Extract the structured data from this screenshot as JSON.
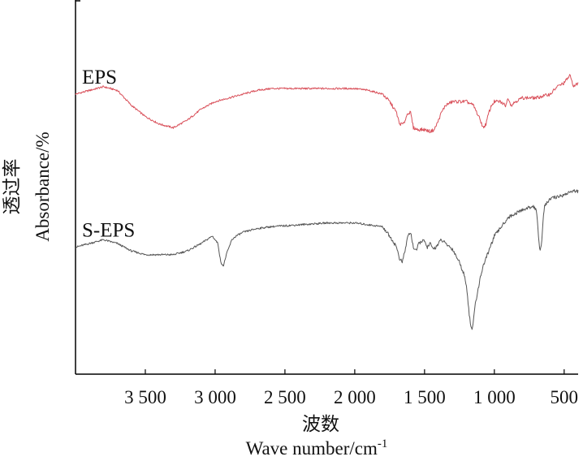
{
  "chart_data": {
    "type": "line",
    "title": "",
    "xlabel_cn": "波数",
    "xlabel": "Wave number/cm",
    "xlabel_sup": "-1",
    "ylabel_cn": "透过率",
    "ylabel": "Absorbance/%",
    "xlim": [
      4000,
      400
    ],
    "x_reversed": true,
    "ylim": [
      0,
      100
    ],
    "y_ticks_shown": false,
    "grid": false,
    "x_ticks": [
      3500,
      3000,
      2500,
      2000,
      1500,
      1000,
      500
    ],
    "x_tick_labels": [
      "3 500",
      "3 000",
      "2 500",
      "2 000",
      "1 500",
      "1 000",
      "500"
    ],
    "series": [
      {
        "name": "EPS",
        "color": "#d9505a",
        "x": [
          4000,
          3900,
          3800,
          3700,
          3600,
          3500,
          3400,
          3300,
          3200,
          3100,
          3000,
          2900,
          2800,
          2700,
          2600,
          2400,
          2200,
          2000,
          1900,
          1800,
          1750,
          1700,
          1680,
          1650,
          1620,
          1600,
          1580,
          1550,
          1500,
          1460,
          1430,
          1400,
          1380,
          1350,
          1300,
          1250,
          1200,
          1150,
          1100,
          1080,
          1060,
          1040,
          1020,
          1000,
          960,
          920,
          900,
          880,
          850,
          800,
          700,
          600,
          550,
          500,
          460,
          430,
          400
        ],
        "values": [
          75,
          76,
          77,
          76,
          72,
          69,
          67,
          66,
          68,
          71,
          73,
          74,
          75,
          76,
          76.5,
          76.5,
          76.5,
          76.5,
          76,
          75,
          73,
          70,
          67,
          67,
          70,
          70,
          66,
          65.5,
          65.5,
          65,
          65.5,
          68,
          70,
          72,
          73,
          73,
          73,
          72,
          68,
          66,
          67,
          70,
          72,
          73,
          73,
          72,
          74,
          72,
          73,
          74,
          74,
          75,
          77,
          78,
          80,
          77,
          78
        ]
      },
      {
        "name": "S-EPS",
        "color": "#555555",
        "x": [
          4000,
          3900,
          3800,
          3700,
          3600,
          3500,
          3400,
          3300,
          3200,
          3100,
          3020,
          2980,
          2960,
          2940,
          2920,
          2880,
          2850,
          2800,
          2700,
          2600,
          2400,
          2200,
          2000,
          1900,
          1800,
          1750,
          1700,
          1680,
          1660,
          1640,
          1620,
          1600,
          1580,
          1560,
          1540,
          1510,
          1480,
          1460,
          1440,
          1420,
          1400,
          1380,
          1350,
          1300,
          1250,
          1220,
          1200,
          1190,
          1180,
          1170,
          1160,
          1150,
          1140,
          1120,
          1100,
          1080,
          1050,
          1000,
          900,
          800,
          720,
          700,
          690,
          680,
          670,
          660,
          650,
          640,
          620,
          600,
          550,
          500,
          450,
          400
        ],
        "values": [
          34,
          35,
          36,
          35,
          33,
          32,
          32,
          32,
          33,
          35,
          37,
          35,
          30,
          29,
          32,
          36,
          37,
          38,
          39,
          39.5,
          40,
          40.5,
          40.5,
          40,
          39.5,
          37,
          34,
          31,
          30,
          33,
          37,
          38,
          34,
          33,
          35,
          36,
          34,
          35,
          33.5,
          34,
          35,
          36,
          35,
          33.5,
          30,
          27,
          24,
          20,
          16,
          13,
          12,
          14,
          18,
          22,
          26,
          29,
          32,
          37,
          42,
          44,
          45,
          44,
          40,
          35,
          33,
          36,
          42,
          45,
          46,
          47,
          47.5,
          48,
          49,
          49
        ]
      }
    ]
  }
}
